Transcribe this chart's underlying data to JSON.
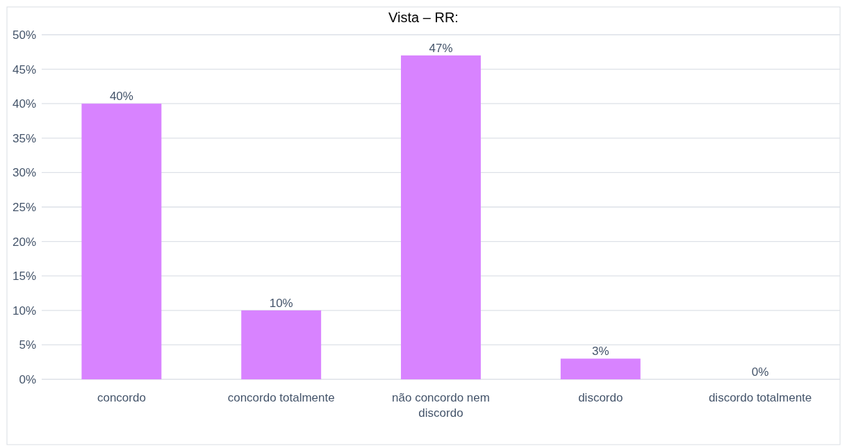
{
  "chart_data": {
    "type": "bar",
    "title": "Vista – RR:",
    "categories": [
      "concordo",
      "concordo totalmente",
      "não concordo nem discordo",
      "discordo",
      "discordo totalmente"
    ],
    "values": [
      40,
      10,
      47,
      3,
      0
    ],
    "color": "#d883ff",
    "ylim": [
      0,
      50
    ],
    "yticks": [
      {
        "value": 0,
        "label": "0%"
      },
      {
        "value": 5,
        "label": "5%"
      },
      {
        "value": 10,
        "label": "10%"
      },
      {
        "value": 15,
        "label": "15%"
      },
      {
        "value": 20,
        "label": "20%"
      },
      {
        "value": 25,
        "label": "25%"
      },
      {
        "value": 30,
        "label": "30%"
      },
      {
        "value": 35,
        "label": "35%"
      },
      {
        "value": 40,
        "label": "40%"
      },
      {
        "value": 45,
        "label": "45%"
      },
      {
        "value": 50,
        "label": "50%"
      }
    ],
    "value_labels": [
      "40%",
      "10%",
      "47%",
      "3%",
      "0%"
    ],
    "grid": true
  }
}
